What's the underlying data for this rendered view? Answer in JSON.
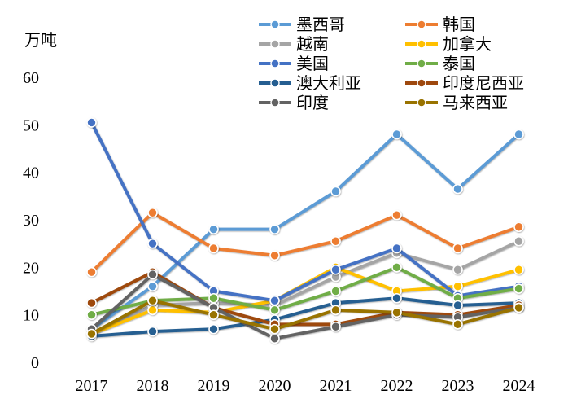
{
  "chart_data": {
    "type": "line",
    "ylabel": "万吨",
    "ylim": [
      0,
      60
    ],
    "yticks": [
      0,
      10,
      20,
      30,
      40,
      50,
      60
    ],
    "categories": [
      "2017",
      "2018",
      "2019",
      "2020",
      "2021",
      "2022",
      "2023",
      "2024"
    ],
    "grid": false,
    "legend": "top-right",
    "series": [
      {
        "name": "墨西哥",
        "color": "#5B9BD5",
        "values": [
          7,
          16,
          28,
          28,
          36,
          48,
          36.5,
          48
        ]
      },
      {
        "name": "韩国",
        "color": "#ED7D31",
        "values": [
          19,
          31.5,
          24,
          22.5,
          25.5,
          31,
          24,
          28.5
        ]
      },
      {
        "name": "越南",
        "color": "#A5A5A5",
        "values": [
          6,
          12,
          12.5,
          12,
          18,
          23,
          19.5,
          25.5
        ]
      },
      {
        "name": "加拿大",
        "color": "#FFC000",
        "values": [
          6,
          11,
          10.5,
          13,
          20,
          15,
          16,
          19.5
        ]
      },
      {
        "name": "美国",
        "color": "#4472C4",
        "values": [
          50.5,
          25,
          15,
          13,
          19.5,
          24,
          14,
          16
        ]
      },
      {
        "name": "泰国",
        "color": "#70AD47",
        "values": [
          10,
          13,
          13.5,
          11,
          15,
          20,
          13.5,
          15.5
        ]
      },
      {
        "name": "澳大利亚",
        "color": "#255E91",
        "values": [
          5.5,
          6.5,
          7,
          9,
          12.5,
          13.5,
          12,
          12.5
        ]
      },
      {
        "name": "印度尼西亚",
        "color": "#9E480E",
        "values": [
          12.5,
          19,
          11.5,
          8,
          8,
          10.5,
          10,
          12
        ]
      },
      {
        "name": "印度",
        "color": "#636363",
        "values": [
          7,
          18.5,
          11.5,
          5,
          7.5,
          10,
          9.5,
          11.5
        ]
      },
      {
        "name": "马来西亚",
        "color": "#997300",
        "values": [
          6,
          13,
          10,
          7,
          11,
          10.5,
          8,
          11.5
        ]
      }
    ]
  }
}
